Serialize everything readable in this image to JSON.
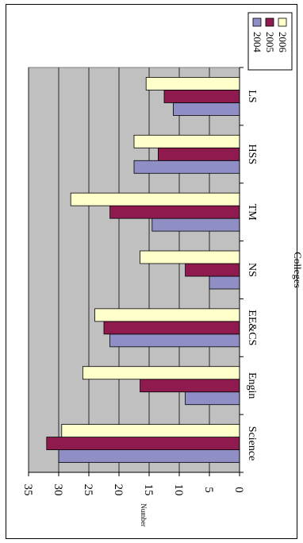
{
  "chart_data": {
    "type": "bar",
    "orientation": "rotated-90",
    "categories": [
      "Science",
      "Engin",
      "EE&CS",
      "NS",
      "TM",
      "HSS",
      "LS"
    ],
    "series": [
      {
        "name": "2004",
        "color": "#8F8FC6",
        "values": [
          30,
          9,
          21.5,
          5,
          14.5,
          17.5,
          11
        ]
      },
      {
        "name": "2005",
        "color": "#8E1A4E",
        "values": [
          32,
          16.5,
          22.5,
          9,
          21.5,
          13.5,
          12.5
        ]
      },
      {
        "name": "2006",
        "color": "#FFFFCC",
        "values": [
          29.5,
          26,
          24,
          16.5,
          28,
          17.5,
          15.5
        ]
      }
    ],
    "xlabel": "Colleges",
    "ylabel": "Number",
    "ylim": [
      0,
      35
    ],
    "yticks": [
      "0",
      "5",
      "10",
      "15",
      "20",
      "25",
      "30",
      "35"
    ],
    "grid": true,
    "legend_position": "top-right",
    "plot_background": "#C0C0C0"
  }
}
